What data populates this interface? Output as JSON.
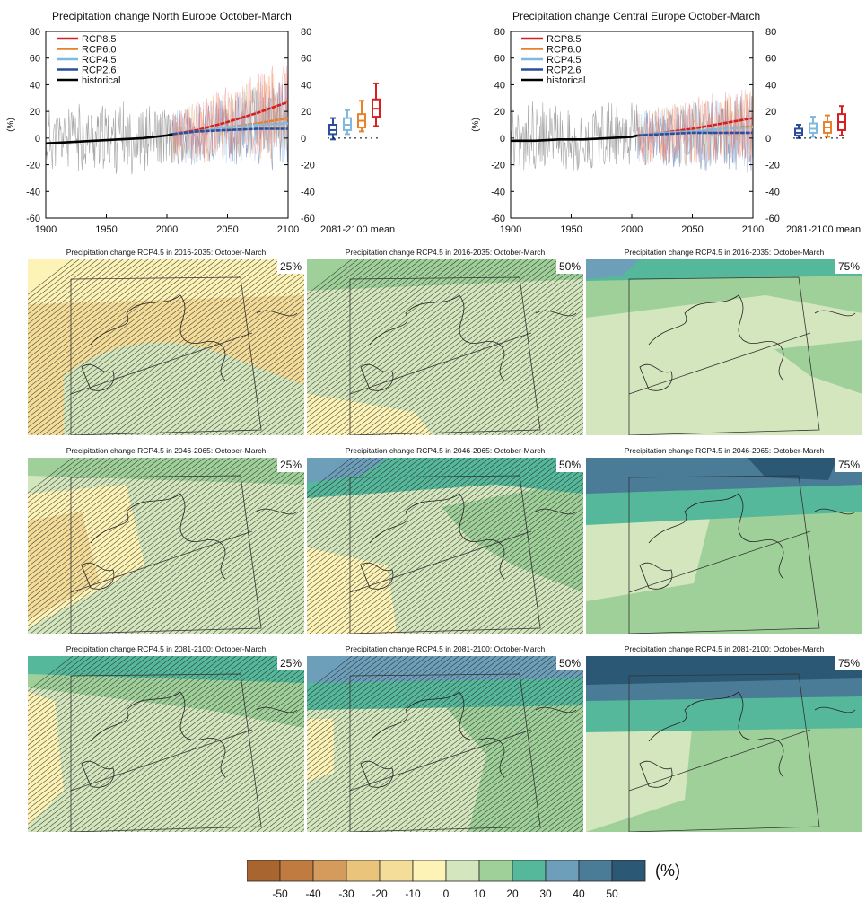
{
  "timeseries": [
    {
      "title": "Precipitation change North Europe October-March",
      "ylabel": "(%)",
      "xticks": [
        "1900",
        "1950",
        "2000",
        "2050",
        "2100"
      ],
      "yticks": [
        "80",
        "60",
        "40",
        "20",
        "0",
        "-20",
        "-40",
        "-60"
      ],
      "box_label": "2081-2100 mean",
      "legend": [
        "RCP8.5",
        "RCP6.0",
        "RCP4.5",
        "RCP2.6",
        "historical"
      ]
    },
    {
      "title": "Precipitation change Central Europe October-March",
      "ylabel": "(%)",
      "xticks": [
        "1900",
        "1950",
        "2000",
        "2050",
        "2100"
      ],
      "yticks": [
        "80",
        "60",
        "40",
        "20",
        "0",
        "-20",
        "-40",
        "-60"
      ],
      "box_label": "2081-2100 mean",
      "legend": [
        "RCP8.5",
        "RCP6.0",
        "RCP4.5",
        "RCP2.6",
        "historical"
      ]
    }
  ],
  "maps": [
    {
      "title": "Precipitation change RCP4.5 in 2016-2035: October-March",
      "pct": "25%"
    },
    {
      "title": "Precipitation change RCP4.5 in 2016-2035: October-March",
      "pct": "50%"
    },
    {
      "title": "Precipitation change RCP4.5 in 2016-2035: October-March",
      "pct": "75%"
    },
    {
      "title": "Precipitation change RCP4.5 in 2046-2065: October-March",
      "pct": "25%"
    },
    {
      "title": "Precipitation change RCP4.5 in 2046-2065: October-March",
      "pct": "50%"
    },
    {
      "title": "Precipitation change RCP4.5 in 2046-2065: October-March",
      "pct": "75%"
    },
    {
      "title": "Precipitation change RCP4.5 in 2081-2100: October-March",
      "pct": "25%"
    },
    {
      "title": "Precipitation change RCP4.5 in 2081-2100: October-March",
      "pct": "50%"
    },
    {
      "title": "Precipitation change RCP4.5 in 2081-2100: October-March",
      "pct": "75%"
    }
  ],
  "colorbar": {
    "unit": "(%)",
    "ticks": [
      "-50",
      "-40",
      "-30",
      "-20",
      "-10",
      "0",
      "10",
      "20",
      "30",
      "40",
      "50"
    ],
    "colors": [
      "#a86530",
      "#c07c40",
      "#d49b5c",
      "#eac47b",
      "#f4dc99",
      "#fdf3b6",
      "#d4e6bd",
      "#9fd09a",
      "#55b89a",
      "#6d9fba",
      "#4a7c98",
      "#2b5874"
    ]
  },
  "chart_data": [
    {
      "type": "line",
      "title": "Precipitation change North Europe October-March",
      "ylabel": "(%)",
      "xlim": [
        1900,
        2100
      ],
      "ylim": [
        -60,
        80
      ],
      "series": [
        {
          "name": "historical",
          "color": "#000000",
          "x": [
            1900,
            1920,
            1940,
            1960,
            1980,
            2000,
            2005
          ],
          "values": [
            -4,
            -3,
            -2,
            -1,
            0,
            2,
            3
          ]
        },
        {
          "name": "RCP8.5",
          "color": "#d62020",
          "x": [
            2005,
            2025,
            2050,
            2075,
            2100
          ],
          "values": [
            3,
            6,
            12,
            19,
            27
          ]
        },
        {
          "name": "RCP6.0",
          "color": "#e8822a",
          "x": [
            2005,
            2025,
            2050,
            2075,
            2100
          ],
          "values": [
            3,
            5,
            8,
            11,
            15
          ]
        },
        {
          "name": "RCP4.5",
          "color": "#7fb8e0",
          "x": [
            2005,
            2025,
            2050,
            2075,
            2100
          ],
          "values": [
            3,
            5,
            8,
            10,
            11
          ]
        },
        {
          "name": "RCP2.6",
          "color": "#2a4d9c",
          "x": [
            2005,
            2025,
            2050,
            2075,
            2100
          ],
          "values": [
            3,
            5,
            6,
            7,
            7
          ]
        }
      ],
      "boxes": [
        {
          "name": "RCP2.6",
          "color": "#2a4d9c",
          "whisker": [
            -1,
            15
          ],
          "box": [
            3,
            10
          ],
          "median": 6
        },
        {
          "name": "RCP4.5",
          "color": "#7fb8e0",
          "whisker": [
            3,
            21
          ],
          "box": [
            6,
            15
          ],
          "median": 10
        },
        {
          "name": "RCP6.0",
          "color": "#e8822a",
          "whisker": [
            5,
            28
          ],
          "box": [
            8,
            18
          ],
          "median": 13
        },
        {
          "name": "RCP8.5",
          "color": "#d62020",
          "whisker": [
            9,
            41
          ],
          "box": [
            16,
            29
          ],
          "median": 22
        }
      ]
    },
    {
      "type": "line",
      "title": "Precipitation change Central Europe October-March",
      "ylabel": "(%)",
      "xlim": [
        1900,
        2100
      ],
      "ylim": [
        -60,
        80
      ],
      "series": [
        {
          "name": "historical",
          "color": "#000000",
          "x": [
            1900,
            1920,
            1940,
            1960,
            1980,
            2000,
            2005
          ],
          "values": [
            -2,
            -2,
            -1,
            -1,
            0,
            1,
            2
          ]
        },
        {
          "name": "RCP8.5",
          "color": "#d62020",
          "x": [
            2005,
            2025,
            2050,
            2075,
            2100
          ],
          "values": [
            2,
            4,
            7,
            11,
            15
          ]
        },
        {
          "name": "RCP6.0",
          "color": "#e8822a",
          "x": [
            2005,
            2025,
            2050,
            2075,
            2100
          ],
          "values": [
            2,
            3,
            5,
            7,
            9
          ]
        },
        {
          "name": "RCP4.5",
          "color": "#7fb8e0",
          "x": [
            2005,
            2025,
            2050,
            2075,
            2100
          ],
          "values": [
            2,
            4,
            5,
            7,
            8
          ]
        },
        {
          "name": "RCP2.6",
          "color": "#2a4d9c",
          "x": [
            2005,
            2025,
            2050,
            2075,
            2100
          ],
          "values": [
            2,
            3,
            4,
            4,
            4
          ]
        }
      ],
      "boxes": [
        {
          "name": "RCP2.6",
          "color": "#2a4d9c",
          "whisker": [
            0,
            10
          ],
          "box": [
            2,
            7
          ],
          "median": 4
        },
        {
          "name": "RCP4.5",
          "color": "#7fb8e0",
          "whisker": [
            1,
            16
          ],
          "box": [
            4,
            11
          ],
          "median": 7
        },
        {
          "name": "RCP6.0",
          "color": "#e8822a",
          "whisker": [
            1,
            17
          ],
          "box": [
            4,
            12
          ],
          "median": 8
        },
        {
          "name": "RCP8.5",
          "color": "#d62020",
          "whisker": [
            2,
            24
          ],
          "box": [
            6,
            18
          ],
          "median": 12
        }
      ]
    }
  ]
}
